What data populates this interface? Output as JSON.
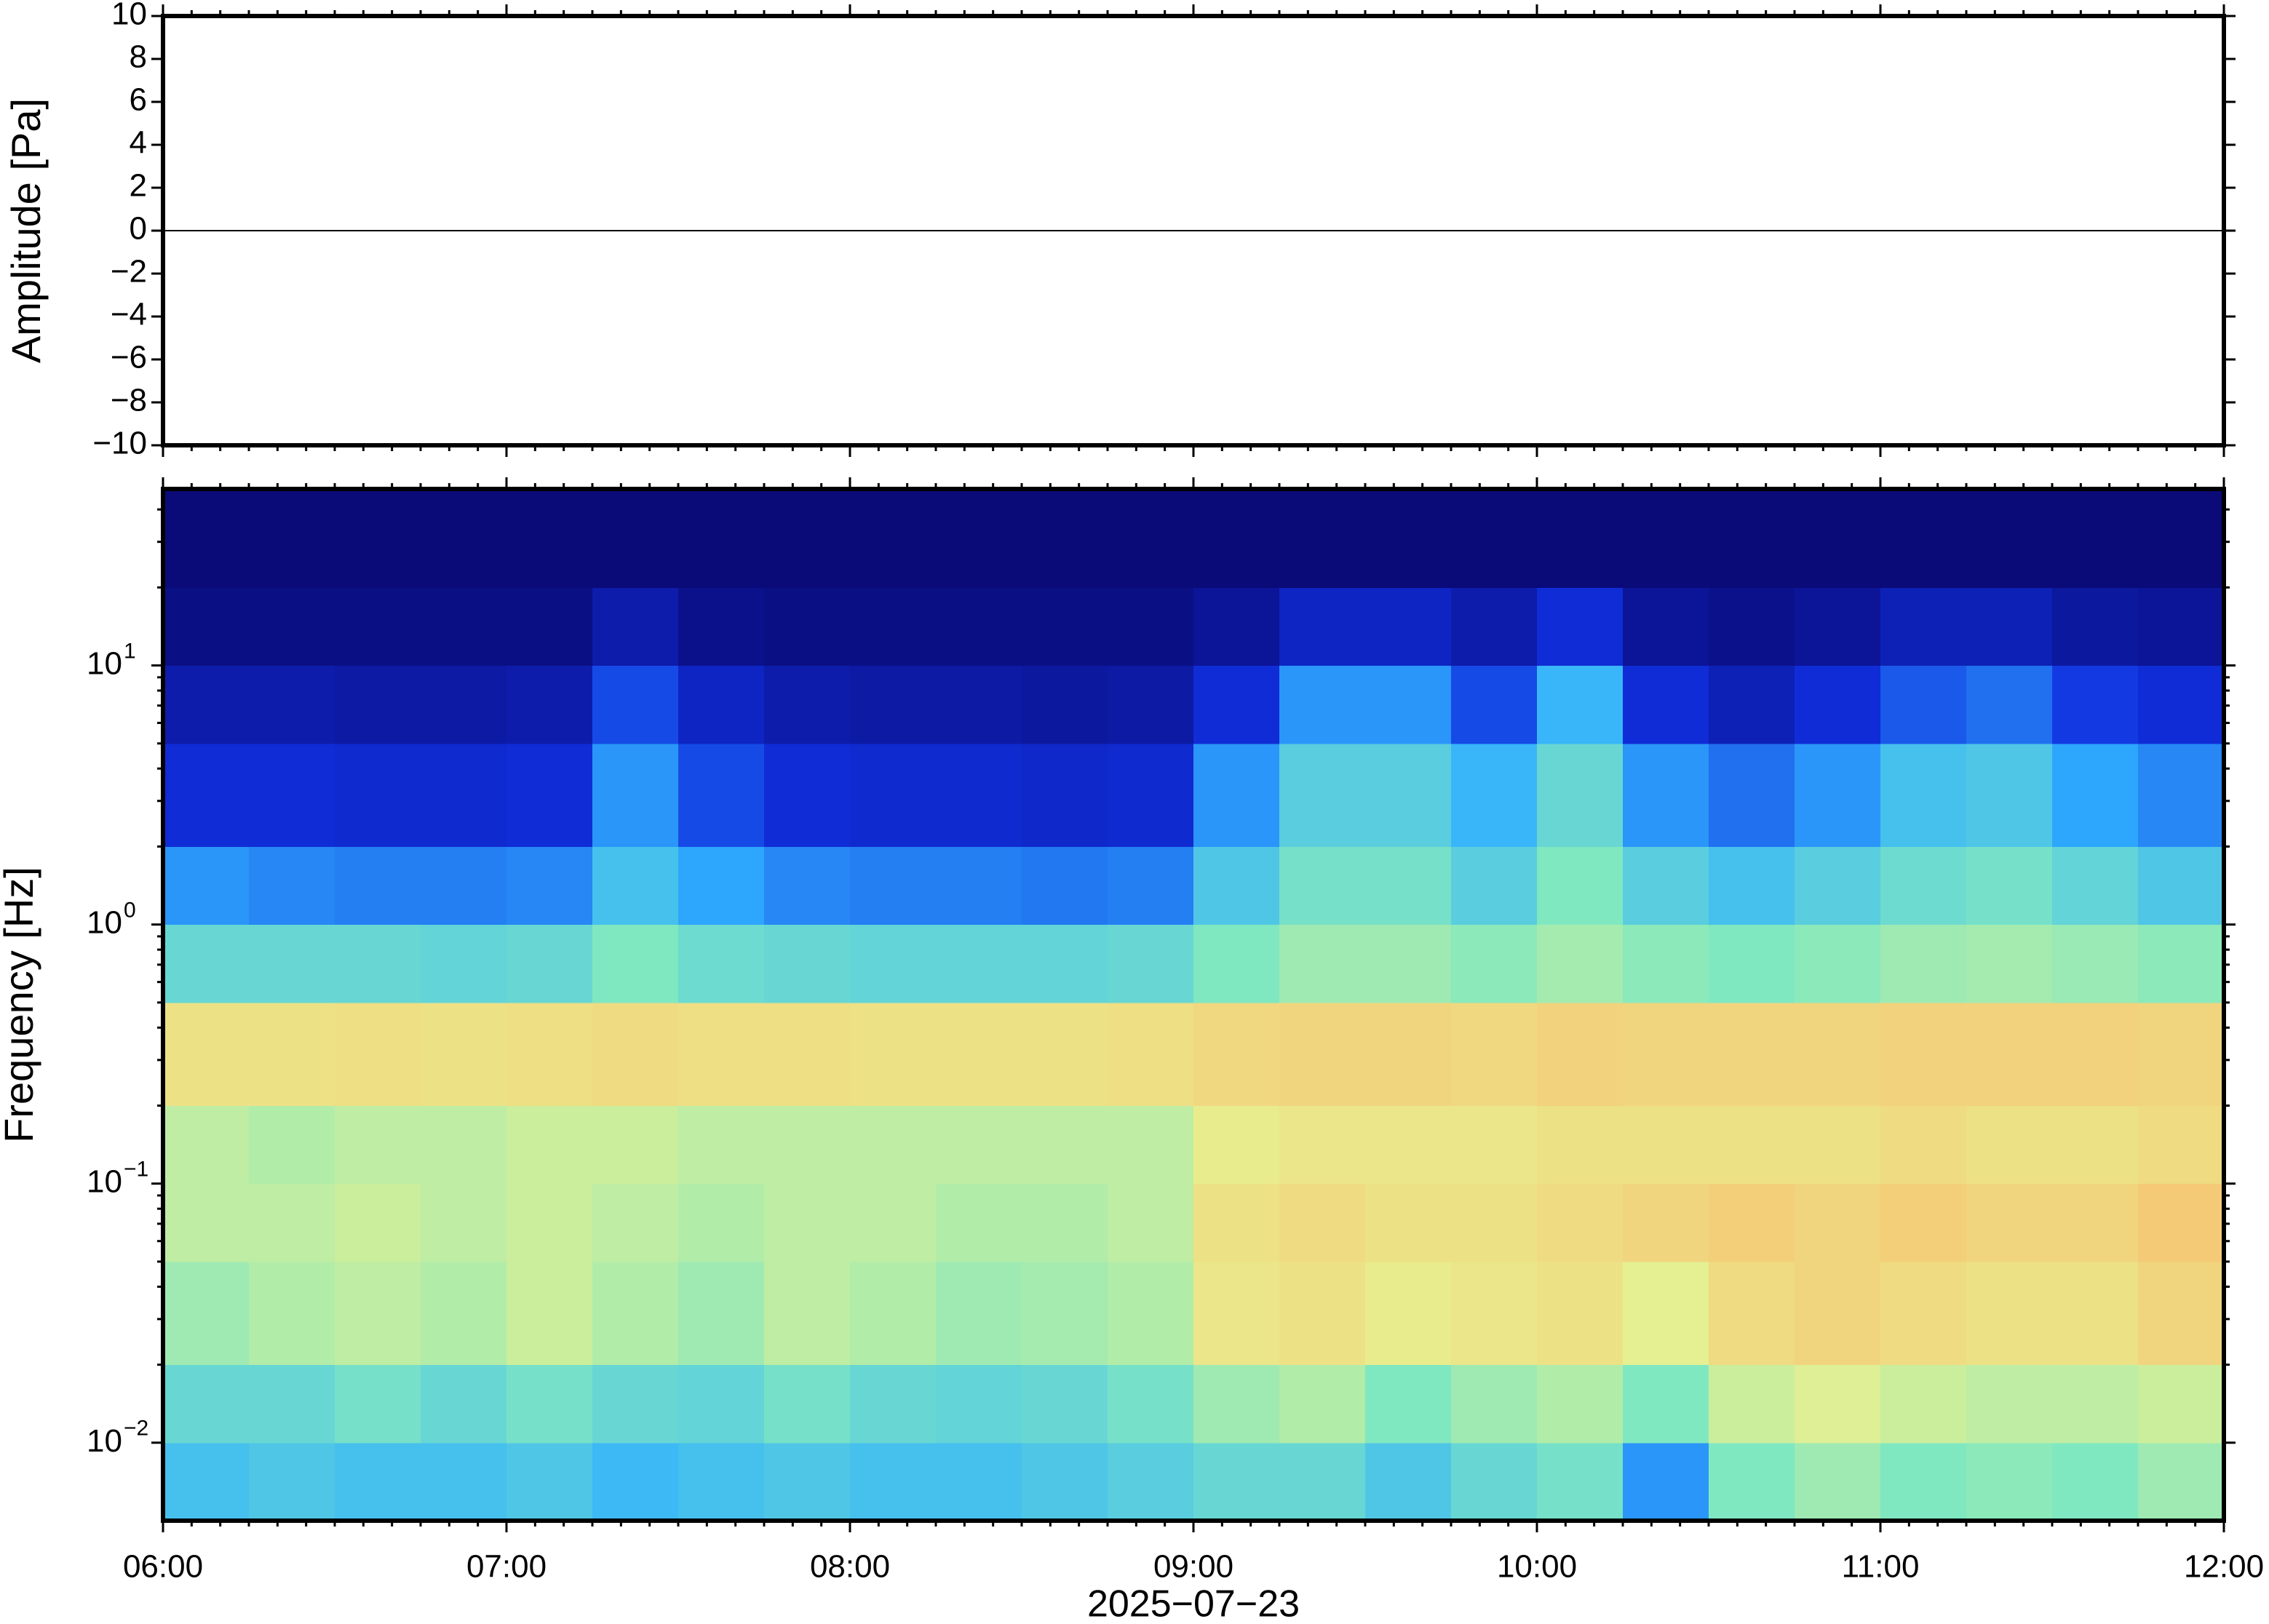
{
  "chart_data": [
    {
      "type": "line",
      "ylabel": "Amplitude [Pa]",
      "x": [
        "06:00",
        "07:00",
        "08:00",
        "09:00",
        "10:00",
        "11:00",
        "12:00"
      ],
      "values": [
        0,
        0,
        0,
        0,
        0,
        0,
        0
      ],
      "color": "#000000",
      "xlim": [
        "06:00",
        "12:00"
      ],
      "xticks": [
        "06:00",
        "07:00",
        "08:00",
        "09:00",
        "10:00",
        "11:00",
        "12:00"
      ],
      "ylim": [
        -10,
        10
      ],
      "yticks": [
        {
          "value": -10,
          "label": "−10"
        },
        {
          "value": -8,
          "label": "−8"
        },
        {
          "value": -6,
          "label": "−6"
        },
        {
          "value": -4,
          "label": "−4"
        },
        {
          "value": -2,
          "label": "−2"
        },
        0,
        2,
        4,
        6,
        8,
        10
      ]
    },
    {
      "type": "heatmap",
      "ylabel": "Frequency [Hz]",
      "xlabel": "2025−07−23",
      "log_y": true,
      "xlim": [
        "06:00",
        "12:00"
      ],
      "xticks": [
        "06:00",
        "07:00",
        "08:00",
        "09:00",
        "10:00",
        "11:00",
        "12:00"
      ],
      "ylim": [
        0.005,
        48
      ],
      "yticks": [
        {
          "value": 0.01,
          "label": "10",
          "exponent": "−2"
        },
        {
          "value": 0.1,
          "label": "10",
          "exponent": "−1"
        },
        {
          "value": 1,
          "label": "10",
          "exponent": "0"
        },
        {
          "value": 10,
          "label": "10",
          "exponent": "1"
        }
      ],
      "xbins": [
        "06:00",
        "06:15",
        "06:30",
        "06:45",
        "07:00",
        "07:15",
        "07:30",
        "07:45",
        "08:00",
        "08:15",
        "08:30",
        "08:45",
        "09:00",
        "09:15",
        "09:30",
        "09:45",
        "10:00",
        "10:15",
        "10:30",
        "10:45",
        "11:00",
        "11:15",
        "11:30",
        "11:45",
        "12:00"
      ],
      "ybins": [
        0.005,
        0.01,
        0.02,
        0.05,
        0.1,
        0.2,
        0.5,
        1,
        2,
        5,
        10,
        20,
        48
      ],
      "colorscale": [
        "#0a0a78",
        "#1030e0",
        "#30b0ff",
        "#80e8c0",
        "#e8f090",
        "#f8c070",
        "#f09050"
      ],
      "values": [
        [
          0.38,
          0.4,
          0.38,
          0.38,
          0.4,
          0.36,
          0.38,
          0.4,
          0.38,
          0.38,
          0.4,
          0.42,
          0.45,
          0.45,
          0.4,
          0.45,
          0.48,
          0.3,
          0.5,
          0.55,
          0.5,
          0.52,
          0.5,
          0.55
        ],
        [
          0.45,
          0.45,
          0.48,
          0.45,
          0.48,
          0.45,
          0.44,
          0.48,
          0.45,
          0.44,
          0.45,
          0.48,
          0.55,
          0.58,
          0.5,
          0.55,
          0.58,
          0.5,
          0.62,
          0.65,
          0.62,
          0.6,
          0.6,
          0.62
        ],
        [
          0.55,
          0.58,
          0.6,
          0.58,
          0.62,
          0.58,
          0.55,
          0.6,
          0.58,
          0.55,
          0.56,
          0.58,
          0.7,
          0.72,
          0.68,
          0.7,
          0.72,
          0.66,
          0.74,
          0.76,
          0.74,
          0.72,
          0.72,
          0.76
        ],
        [
          0.6,
          0.6,
          0.62,
          0.6,
          0.62,
          0.6,
          0.58,
          0.6,
          0.6,
          0.58,
          0.58,
          0.6,
          0.72,
          0.74,
          0.72,
          0.72,
          0.74,
          0.76,
          0.78,
          0.76,
          0.78,
          0.76,
          0.76,
          0.8
        ],
        [
          0.6,
          0.58,
          0.6,
          0.6,
          0.62,
          0.62,
          0.6,
          0.6,
          0.6,
          0.6,
          0.6,
          0.6,
          0.68,
          0.7,
          0.7,
          0.7,
          0.72,
          0.72,
          0.72,
          0.72,
          0.74,
          0.72,
          0.72,
          0.74
        ],
        [
          0.72,
          0.72,
          0.73,
          0.72,
          0.73,
          0.74,
          0.73,
          0.73,
          0.72,
          0.72,
          0.72,
          0.73,
          0.75,
          0.76,
          0.76,
          0.75,
          0.77,
          0.76,
          0.76,
          0.76,
          0.77,
          0.77,
          0.77,
          0.76
        ],
        [
          0.45,
          0.45,
          0.45,
          0.44,
          0.45,
          0.5,
          0.46,
          0.45,
          0.44,
          0.44,
          0.44,
          0.45,
          0.5,
          0.55,
          0.55,
          0.52,
          0.56,
          0.52,
          0.5,
          0.52,
          0.55,
          0.56,
          0.54,
          0.52
        ],
        [
          0.3,
          0.28,
          0.27,
          0.27,
          0.28,
          0.38,
          0.32,
          0.28,
          0.27,
          0.27,
          0.26,
          0.27,
          0.4,
          0.48,
          0.48,
          0.42,
          0.5,
          0.42,
          0.38,
          0.42,
          0.46,
          0.48,
          0.44,
          0.4
        ],
        [
          0.15,
          0.15,
          0.14,
          0.14,
          0.15,
          0.3,
          0.2,
          0.15,
          0.14,
          0.14,
          0.13,
          0.14,
          0.3,
          0.42,
          0.42,
          0.35,
          0.45,
          0.3,
          0.25,
          0.3,
          0.38,
          0.4,
          0.32,
          0.28
        ],
        [
          0.08,
          0.08,
          0.07,
          0.07,
          0.08,
          0.2,
          0.12,
          0.08,
          0.07,
          0.07,
          0.06,
          0.07,
          0.15,
          0.3,
          0.3,
          0.2,
          0.35,
          0.15,
          0.1,
          0.15,
          0.22,
          0.25,
          0.18,
          0.15
        ],
        [
          0.02,
          0.02,
          0.02,
          0.02,
          0.02,
          0.08,
          0.03,
          0.02,
          0.02,
          0.02,
          0.02,
          0.02,
          0.05,
          0.12,
          0.12,
          0.08,
          0.15,
          0.05,
          0.03,
          0.05,
          0.1,
          0.1,
          0.06,
          0.05
        ],
        [
          0,
          0,
          0,
          0,
          0,
          0,
          0,
          0,
          0,
          0,
          0,
          0,
          0,
          0,
          0,
          0,
          0,
          0,
          0,
          0,
          0,
          0,
          0,
          0
        ]
      ]
    }
  ]
}
